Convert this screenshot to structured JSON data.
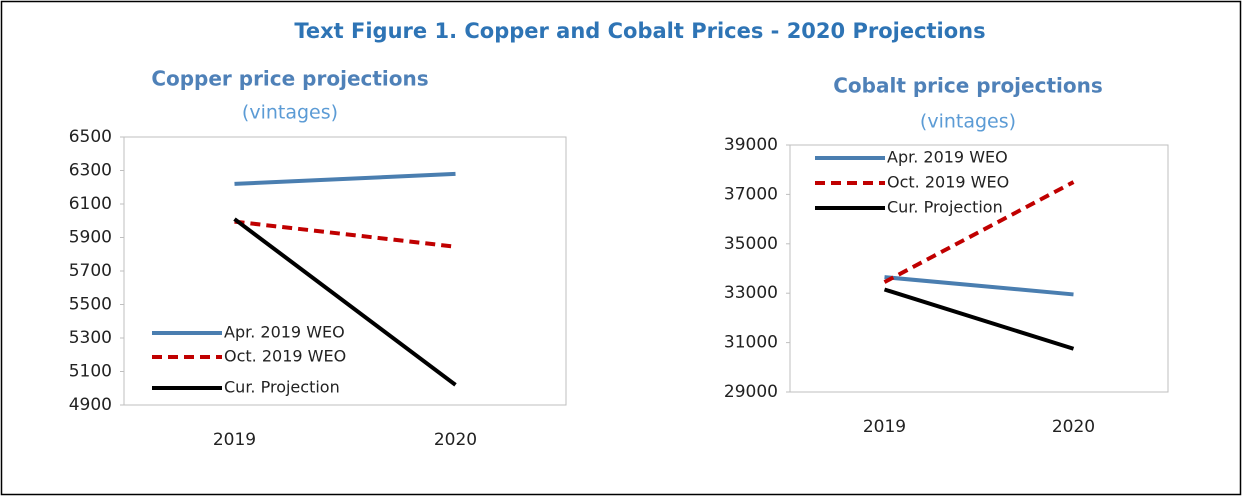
{
  "title": "Text Figure 1. Copper and Cobalt Prices - 2020 Projections",
  "chart_data": [
    {
      "type": "line",
      "title": "Copper price projections",
      "subtitle": "(vintages)",
      "categories": [
        "2019",
        "2020"
      ],
      "series": [
        {
          "name": "Apr. 2019 WEO",
          "color": "#4a7eb0",
          "dashed": false,
          "values": [
            6220,
            6280
          ]
        },
        {
          "name": "Oct. 2019 WEO",
          "color": "#c00000",
          "dashed": true,
          "values": [
            5995,
            5845
          ]
        },
        {
          "name": "Cur. Projection",
          "color": "#000000",
          "dashed": false,
          "values": [
            6010,
            5020
          ]
        }
      ],
      "ylim": [
        4900,
        6500
      ],
      "yticks": [
        4900,
        5100,
        5300,
        5500,
        5700,
        5900,
        6100,
        6300,
        6500
      ],
      "legend": "lower left"
    },
    {
      "type": "line",
      "title": "Cobalt price projections",
      "subtitle": "(vintages)",
      "categories": [
        "2019",
        "2020"
      ],
      "series": [
        {
          "name": "Apr. 2019 WEO",
          "color": "#4a7eb0",
          "dashed": false,
          "values": [
            33650,
            32950
          ]
        },
        {
          "name": "Oct. 2019 WEO",
          "color": "#c00000",
          "dashed": true,
          "values": [
            33450,
            37500
          ]
        },
        {
          "name": "Cur. Projection",
          "color": "#000000",
          "dashed": false,
          "values": [
            33150,
            30750
          ]
        }
      ],
      "ylim": [
        29000,
        39000
      ],
      "yticks": [
        29000,
        31000,
        33000,
        35000,
        37000,
        39000
      ],
      "legend": "upper left"
    }
  ]
}
